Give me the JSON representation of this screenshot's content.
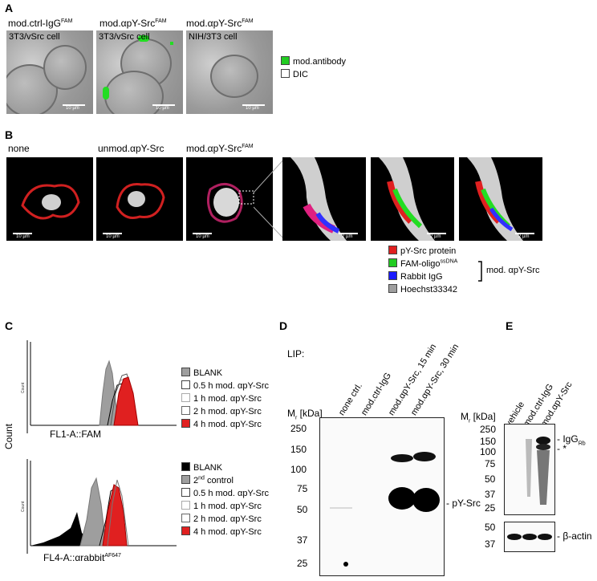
{
  "panels": {
    "A": {
      "label": "A",
      "images": [
        {
          "title": "mod.ctrl-IgG",
          "title_sup": "FAM",
          "inner": "3T3/vSrc cell",
          "scale": "10 µm"
        },
        {
          "title": "mod.αpY-Src",
          "title_sup": "FAM",
          "inner": "3T3/vSrc cell",
          "scale": "10 µm"
        },
        {
          "title": "mod.αpY-Src",
          "title_sup": "FAM",
          "inner": "NIH/3T3 cell",
          "scale": "10 µm"
        }
      ],
      "legend": [
        {
          "label": "mod.antibody",
          "color": "#22cc22"
        },
        {
          "label": "DIC",
          "color": "#ffffff"
        }
      ]
    },
    "B": {
      "label": "B",
      "images": [
        {
          "title": "none",
          "scale": "10 µm"
        },
        {
          "title": "unmod.αpY-Src",
          "scale": "10 µm"
        },
        {
          "title": "mod.αpY-Src",
          "title_sup": "FAM",
          "scale": "10 µm"
        }
      ],
      "zoom_scale": "2 µm",
      "legend": [
        {
          "label": "pY-Src protein",
          "color": "#e02020"
        },
        {
          "label": "FAM-oligo",
          "sup": "ssDNA",
          "color": "#22cc22"
        },
        {
          "label": "Rabbit IgG",
          "color": "#1a1aff"
        },
        {
          "label": "Hoechst33342",
          "color": "#9e9e9e"
        }
      ],
      "bracket_label": "mod. αpY-Src"
    },
    "C": {
      "label": "C",
      "ylabel": "Count",
      "top": {
        "xlabel": "FL1-A::FAM",
        "axis_tick": "Count",
        "legend": [
          {
            "label": "BLANK",
            "color": "#9e9e9e"
          },
          {
            "label": "0.5 h mod. αpY-Src",
            "color": "#ffffff"
          },
          {
            "label": "1 h mod. αpY-Src",
            "color": "#ffffff"
          },
          {
            "label": "2 h mod. αpY-Src",
            "color": "#ffffff"
          },
          {
            "label": "4 h mod. αpY-Src",
            "color": "#e02020"
          }
        ]
      },
      "bottom": {
        "xlabel": "FL4-A::αrabbit",
        "xlabel_sup": "AF647",
        "axis_tick": "Count",
        "legend": [
          {
            "label": "BLANK",
            "color": "#000000"
          },
          {
            "label": "2",
            "sup": "nd",
            "label_tail": " control",
            "color": "#9e9e9e"
          },
          {
            "label": "0.5 h mod. αpY-Src",
            "color": "#ffffff"
          },
          {
            "label": "1 h mod. αpY-Src",
            "color": "#ffffff"
          },
          {
            "label": "2 h mod. αpY-Src",
            "color": "#ffffff"
          },
          {
            "label": "4 h mod. αpY-Src",
            "color": "#e02020"
          }
        ]
      }
    },
    "D": {
      "label": "D",
      "lip": "LIP:",
      "mr": "M",
      "mr_sub": "r",
      "mr_unit": " [kDa]",
      "lanes": [
        "none ctrl.",
        "mod.ctrl-IgG",
        "mod.αpY-Src, 15 min",
        "mod.αpY-Src, 30 min"
      ],
      "markers": [
        "250",
        "150",
        "100",
        "75",
        "50",
        "37",
        "25"
      ],
      "band_label": "pY-Src"
    },
    "E": {
      "label": "E",
      "mr": "M",
      "mr_sub": "r",
      "mr_unit": " [kDa]",
      "lanes": [
        "vehicle",
        "mod.ctrl-IgG",
        "mod.αpY-Src"
      ],
      "markers": [
        "250",
        "150",
        "100",
        "75",
        "50",
        "37",
        "25"
      ],
      "markers_lower": [
        "50",
        "37"
      ],
      "igg": "IgG",
      "igg_sub": "Rb",
      "star": "*",
      "actin": "β-actin"
    }
  }
}
